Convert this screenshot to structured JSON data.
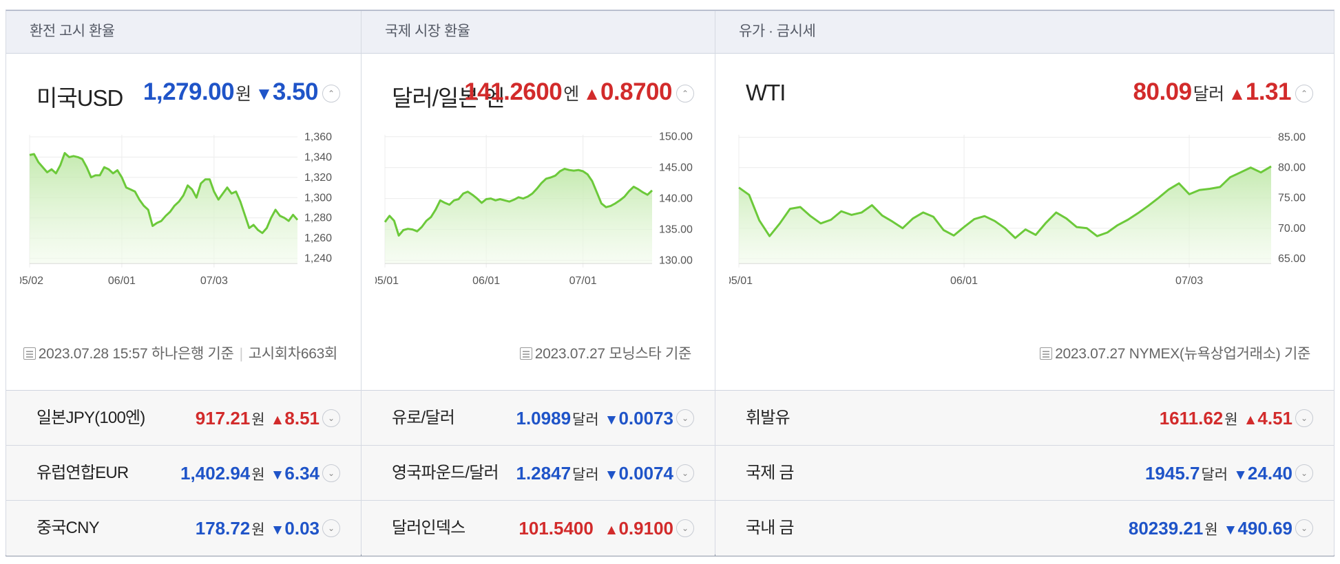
{
  "panels": [
    {
      "header": "환전 고시 환율",
      "main": {
        "name": "미국USD",
        "price": "1,279.00",
        "unit": "원",
        "dir": "down",
        "arrow": "▼",
        "change": "3.50",
        "source": "2023.07.28 15:57 하나은행 기준",
        "source_extra": "고시회차663회"
      },
      "rows": [
        {
          "name": "일본JPY(100엔)",
          "price": "917.21",
          "unit": "원",
          "dir": "up",
          "arrow": "▲",
          "change": "8.51"
        },
        {
          "name": "유럽연합EUR",
          "price": "1,402.94",
          "unit": "원",
          "dir": "down",
          "arrow": "▼",
          "change": "6.34"
        },
        {
          "name": "중국CNY",
          "price": "178.72",
          "unit": "원",
          "dir": "down",
          "arrow": "▼",
          "change": "0.03"
        }
      ]
    },
    {
      "header": "국제 시장 환율",
      "main": {
        "name": "달러/일본 엔",
        "price": "141.2600",
        "unit": "엔",
        "dir": "up",
        "arrow": "▲",
        "change": "0.8700",
        "source": "2023.07.27 모닝스타 기준",
        "source_extra": ""
      },
      "rows": [
        {
          "name": "유로/달러",
          "price": "1.0989",
          "unit": "달러",
          "dir": "down",
          "arrow": "▼",
          "change": "0.0073"
        },
        {
          "name": "영국파운드/달러",
          "price": "1.2847",
          "unit": "달러",
          "dir": "down",
          "arrow": "▼",
          "change": "0.0074"
        },
        {
          "name": "달러인덱스",
          "price": "101.5400",
          "unit": "",
          "dir": "up",
          "arrow": "▲",
          "change": "0.9100"
        }
      ]
    },
    {
      "header": "유가 · 금시세",
      "main": {
        "name": "WTI",
        "price": "80.09",
        "unit": "달러",
        "dir": "up",
        "arrow": "▲",
        "change": "1.31",
        "source": "2023.07.27 NYMEX(뉴욕상업거래소) 기준",
        "source_extra": ""
      },
      "rows": [
        {
          "name": "휘발유",
          "price": "1611.62",
          "unit": "원",
          "dir": "up",
          "arrow": "▲",
          "change": "4.51"
        },
        {
          "name": "국제 금",
          "price": "1945.7",
          "unit": "달러",
          "dir": "down",
          "arrow": "▼",
          "change": "24.40"
        },
        {
          "name": "국내 금",
          "price": "80239.21",
          "unit": "원",
          "dir": "down",
          "arrow": "▼",
          "change": "490.69"
        }
      ]
    }
  ],
  "chart_data": [
    {
      "type": "area",
      "x_ticks": [
        "05/02",
        "06/01",
        "07/03"
      ],
      "x_tick_index": [
        0,
        21,
        42
      ],
      "y_ticks": [
        "1,360",
        "1,340",
        "1,320",
        "1,300",
        "1,280",
        "1,260",
        "1,240"
      ],
      "ylim": [
        1235,
        1362
      ],
      "grid": true,
      "line_color": "#6cc93a",
      "values": [
        1342,
        1343,
        1335,
        1330,
        1325,
        1328,
        1324,
        1332,
        1344,
        1340,
        1341,
        1340,
        1338,
        1330,
        1320,
        1322,
        1322,
        1330,
        1328,
        1324,
        1327,
        1320,
        1310,
        1308,
        1306,
        1298,
        1292,
        1288,
        1272,
        1275,
        1277,
        1282,
        1286,
        1292,
        1296,
        1302,
        1312,
        1308,
        1300,
        1314,
        1318,
        1318,
        1306,
        1298,
        1304,
        1310,
        1304,
        1306,
        1296,
        1283,
        1270,
        1273,
        1268,
        1265,
        1270,
        1280,
        1288,
        1282,
        1280,
        1277,
        1283,
        1278
      ]
    },
    {
      "type": "area",
      "x_ticks": [
        "05/01",
        "06/01",
        "07/01"
      ],
      "x_tick_index": [
        0,
        22,
        43
      ],
      "y_ticks": [
        "150.00",
        "145.00",
        "140.00",
        "135.00",
        "130.00"
      ],
      "ylim": [
        129.5,
        150.3
      ],
      "grid": true,
      "line_color": "#6cc93a",
      "values": [
        136.2,
        137.2,
        136.4,
        134.0,
        134.9,
        135.1,
        135.0,
        134.7,
        135.4,
        136.4,
        137.0,
        138.2,
        139.7,
        139.3,
        139.0,
        139.7,
        139.9,
        140.8,
        141.1,
        140.6,
        140.0,
        139.3,
        139.9,
        140.0,
        139.7,
        139.9,
        139.7,
        139.5,
        139.8,
        140.2,
        140.0,
        140.3,
        140.8,
        141.6,
        142.5,
        143.2,
        143.4,
        143.7,
        144.4,
        144.8,
        144.6,
        144.5,
        144.6,
        144.4,
        143.9,
        142.8,
        141.0,
        139.2,
        138.6,
        138.8,
        139.2,
        139.7,
        140.3,
        141.2,
        141.9,
        141.5,
        141.0,
        140.6,
        141.3
      ]
    },
    {
      "type": "area",
      "x_ticks": [
        "05/01",
        "06/01",
        "07/03"
      ],
      "x_tick_index": [
        0,
        22,
        44
      ],
      "y_ticks": [
        "85.00",
        "80.00",
        "75.00",
        "70.00",
        "65.00"
      ],
      "ylim": [
        64.2,
        85.4
      ],
      "grid": true,
      "line_color": "#6cc93a",
      "values": [
        76.7,
        75.5,
        71.3,
        68.7,
        70.8,
        73.2,
        73.5,
        72.0,
        70.8,
        71.4,
        72.8,
        72.2,
        72.6,
        73.8,
        72.1,
        71.1,
        70.0,
        71.6,
        72.6,
        71.9,
        69.7,
        68.8,
        70.2,
        71.5,
        72.0,
        71.2,
        70.0,
        68.4,
        69.8,
        68.9,
        70.9,
        72.6,
        71.6,
        70.2,
        70.0,
        68.7,
        69.3,
        70.5,
        71.4,
        72.5,
        73.7,
        75.0,
        76.4,
        77.4,
        75.6,
        76.3,
        76.5,
        76.8,
        78.4,
        79.2,
        80.0,
        79.2,
        80.2
      ]
    }
  ]
}
